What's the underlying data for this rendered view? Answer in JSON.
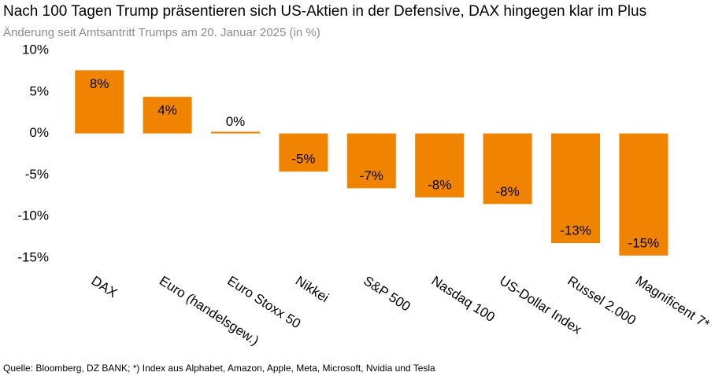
{
  "chart_data": {
    "type": "bar",
    "title": "Nach 100 Tagen Trump präsentieren sich US-Aktien in der Defensive, DAX hingegen klar im Plus",
    "subtitle": "Änderung seit Amtsantritt Trumps am 20. Januar 2025 (in %)",
    "source": "Quelle: Bloomberg, DZ BANK; *) Index aus Alphabet, Amazon, Apple, Meta, Microsoft, Nvidia und Tesla",
    "categories": [
      "DAX",
      "Euro (handelsgew.)",
      "Euro Stoxx 50",
      "Nikkei",
      "S&P 500",
      "Nasdaq 100",
      "US-Dollar Index",
      "Russel 2.000",
      "Magnificent 7*"
    ],
    "values": [
      7.6,
      4.4,
      0.2,
      -4.6,
      -6.6,
      -7.7,
      -8.5,
      -13.2,
      -14.7
    ],
    "data_labels": [
      "8%",
      "4%",
      "0%",
      "-5%",
      "-7%",
      "-8%",
      "-8%",
      "-13%",
      "-15%"
    ],
    "yticks": [
      10,
      5,
      0,
      -5,
      -10,
      -15
    ],
    "ytick_labels": [
      "10%",
      "5%",
      "0%",
      "-5%",
      "-10%",
      "-15%"
    ],
    "ylim": [
      -15,
      10
    ],
    "bar_color": "#f08300",
    "grid": false,
    "legend": "none"
  }
}
